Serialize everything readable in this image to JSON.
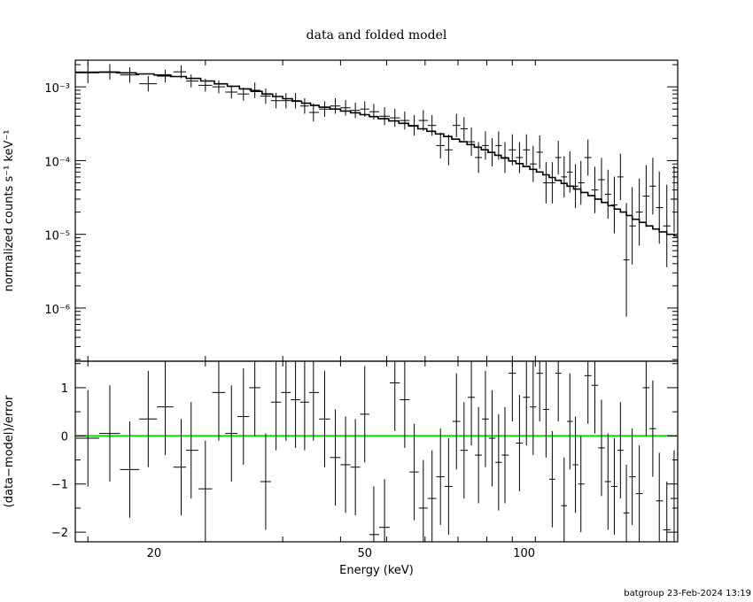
{
  "chart_data": [
    {
      "type": "line",
      "panel": "top",
      "title": "data and folded model",
      "ylabel": "normalized counts s⁻¹ keV⁻¹",
      "xlabel": "",
      "xscale": "log",
      "yscale": "log",
      "xlim": [
        14.2,
        195
      ],
      "ylim": [
        1.9e-07,
        0.0023
      ],
      "y_ticks": [
        "10⁻³",
        "10⁻⁴",
        "10⁻⁵",
        "10⁻⁶"
      ],
      "data": {
        "x": [
          15.0,
          16.5,
          18.0,
          19.5,
          21.0,
          22.5,
          23.5,
          25.0,
          26.5,
          28.0,
          29.5,
          31.0,
          32.5,
          34.0,
          35.5,
          37.0,
          38.5,
          40.0,
          42.0,
          44.0,
          46.0,
          48.0,
          50.0,
          52.0,
          54.5,
          57.0,
          59.5,
          62.0,
          64.5,
          67.0,
          69.5,
          72.0,
          74.5,
          77.0,
          79.5,
          82.0,
          84.5,
          87.0,
          89.5,
          92.0,
          95.0,
          98.0,
          101,
          104,
          107,
          110,
          113,
          116,
          119,
          122,
          125,
          128,
          132,
          136,
          140,
          144,
          148,
          152,
          156,
          160,
          165,
          170,
          175,
          180,
          186,
          192
        ],
        "y": [
          0.00155,
          0.0016,
          0.00145,
          0.0011,
          0.0014,
          0.0016,
          0.0012,
          0.00105,
          0.001,
          0.00085,
          0.0008,
          0.0009,
          0.00075,
          0.00065,
          0.00065,
          0.00065,
          0.00055,
          0.00045,
          0.0005,
          0.00055,
          0.00052,
          0.00048,
          0.0005,
          0.00046,
          0.0004,
          0.00038,
          0.00035,
          0.0003,
          0.00035,
          0.0003,
          0.00016,
          0.00014,
          0.0003,
          0.00027,
          0.00018,
          0.00011,
          0.00016,
          0.00013,
          0.00016,
          0.00011,
          0.00014,
          0.00011,
          0.00014,
          9e-05,
          0.00013,
          5e-05,
          5e-05,
          0.00011,
          6e-05,
          7e-05,
          4.5e-05,
          5e-05,
          0.00011,
          4e-05,
          5.5e-05,
          3.5e-05,
          2.5e-05,
          6e-05,
          4.5e-06,
          1.3e-05,
          2e-05,
          3.3e-05,
          4.5e-05,
          2.3e-05,
          1.3e-05,
          3e-05
        ],
        "yerr": [
          0.4,
          0.3,
          0.3,
          0.3,
          0.25,
          0.25,
          0.25,
          0.25,
          0.25,
          0.25,
          0.25,
          0.3,
          0.3,
          0.3,
          0.3,
          0.3,
          0.3,
          0.35,
          0.3,
          0.3,
          0.3,
          0.3,
          0.3,
          0.3,
          0.35,
          0.35,
          0.35,
          0.4,
          0.4,
          0.4,
          0.5,
          0.6,
          0.45,
          0.45,
          0.55,
          0.6,
          0.55,
          0.55,
          0.55,
          0.6,
          0.6,
          0.6,
          0.6,
          0.7,
          0.65,
          0.8,
          0.8,
          0.65,
          0.8,
          0.8,
          0.85,
          0.85,
          0.7,
          0.9,
          0.85,
          0.95,
          1.1,
          0.9,
          2.2,
          1.5,
          1.3,
          1.2,
          1.1,
          1.4,
          1.6,
          1.3
        ]
      },
      "model": {
        "x": [
          14.2,
          15.5,
          17.0,
          18.5,
          20.0,
          21.5,
          23.0,
          24.5,
          26.0,
          27.5,
          29.0,
          30.5,
          32.0,
          33.5,
          35.0,
          36.5,
          38.0,
          39.5,
          41.0,
          43.0,
          45.0,
          47.0,
          49.0,
          51.0,
          53.0,
          55.5,
          58.0,
          60.5,
          63.0,
          65.5,
          68.0,
          70.5,
          73.0,
          75.5,
          78.0,
          80.5,
          83.0,
          85.5,
          88.0,
          90.5,
          93.5,
          96.5,
          99.5,
          102.5,
          105.5,
          108.5,
          111.5,
          114.5,
          117.5,
          120.5,
          124,
          128,
          132,
          136,
          140,
          144,
          148,
          152,
          156,
          160,
          165,
          170,
          175,
          180,
          186,
          192,
          195
        ],
        "y": [
          0.00158,
          0.00158,
          0.00155,
          0.0015,
          0.00145,
          0.00138,
          0.0013,
          0.0012,
          0.0011,
          0.00102,
          0.00094,
          0.00087,
          0.0008,
          0.00074,
          0.00069,
          0.00064,
          0.0006,
          0.00056,
          0.00053,
          0.0005,
          0.00047,
          0.000445,
          0.00042,
          0.000395,
          0.00037,
          0.000345,
          0.00032,
          0.000295,
          0.00027,
          0.00025,
          0.00023,
          0.000212,
          0.000195,
          0.00018,
          0.000165,
          0.000152,
          0.00014,
          0.000129,
          0.000118,
          0.000108,
          9.9e-05,
          9.1e-05,
          8.3e-05,
          7.6e-05,
          7e-05,
          6.4e-05,
          5.9e-05,
          5.4e-05,
          4.9e-05,
          4.5e-05,
          4.1e-05,
          3.7e-05,
          3.35e-05,
          3e-05,
          2.7e-05,
          2.45e-05,
          2.2e-05,
          2e-05,
          1.8e-05,
          1.6e-05,
          1.45e-05,
          1.3e-05,
          1.18e-05,
          1.08e-05,
          1e-05,
          9.5e-06,
          9.5e-06
        ]
      }
    },
    {
      "type": "line",
      "panel": "bottom",
      "ylabel": "(data−model)/error",
      "xlabel": "Energy (keV)",
      "xscale": "log",
      "xlim": [
        14.2,
        195
      ],
      "ylim": [
        -2.2,
        1.55
      ],
      "y_ticks": [
        "1",
        "0",
        "−1",
        "−2"
      ],
      "y_tick_values": [
        1,
        0,
        -1,
        -2
      ],
      "x_ticks": [
        "20",
        "50",
        "100"
      ],
      "x_tick_values": [
        20,
        50,
        100
      ],
      "zero_line_color": "#00e000",
      "residuals": [
        -0.05,
        0.05,
        -0.7,
        0.35,
        0.6,
        -0.65,
        -0.3,
        -1.1,
        0.9,
        0.05,
        0.4,
        1.0,
        -0.95,
        0.7,
        0.9,
        0.75,
        0.7,
        0.9,
        0.35,
        -0.45,
        -0.6,
        -0.65,
        0.45,
        -2.05,
        -1.9,
        1.1,
        0.75,
        -0.75,
        -1.5,
        -1.3,
        -0.85,
        -1.05,
        0.3,
        -0.3,
        0.8,
        -0.4,
        0.35,
        -0.05,
        -0.55,
        -0.4,
        1.3,
        -0.15,
        0.8,
        0.6,
        1.3,
        0.55,
        -0.9,
        1.3,
        -1.45,
        0.3,
        -0.6,
        -1.0,
        1.25,
        1.05,
        -0.25,
        -0.95,
        -1.05,
        -0.3,
        -1.6,
        -0.85,
        -1.2,
        1.0,
        0.15,
        -1.35,
        -1.95,
        -1.3
      ]
    }
  ],
  "footer": {
    "text": "batgroup 23-Feb-2024 13:19"
  },
  "colors": {
    "axes": "#000000",
    "data": "#000000",
    "model": "#000000",
    "zero_line": "#00e000",
    "background": "#ffffff"
  }
}
